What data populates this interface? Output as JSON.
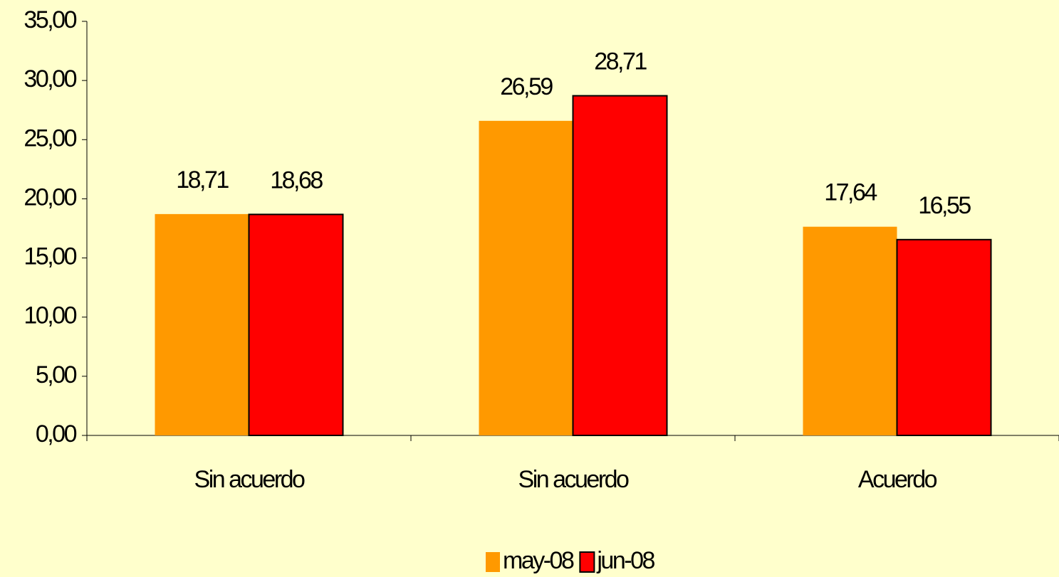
{
  "chart_data": {
    "type": "bar",
    "categories": [
      "Sin acuerdo",
      "Sin acuerdo",
      "Acuerdo"
    ],
    "series": [
      {
        "name": "may-08",
        "color": "#ff9900",
        "values": [
          18.71,
          26.59,
          17.64
        ],
        "value_labels": [
          "18,71",
          "26,59",
          "17,64"
        ]
      },
      {
        "name": "jun-08",
        "color": "#ff0000",
        "edgecolor": "#000000",
        "values": [
          18.68,
          28.71,
          16.55
        ],
        "value_labels": [
          "18,68",
          "28,71",
          "16,55"
        ]
      }
    ],
    "ylim": [
      0,
      35
    ],
    "yticks": [
      {
        "value": 0,
        "label": "0,00"
      },
      {
        "value": 5,
        "label": "5,00"
      },
      {
        "value": 10,
        "label": "10,00"
      },
      {
        "value": 15,
        "label": "15,00"
      },
      {
        "value": 20,
        "label": "20,00"
      },
      {
        "value": 25,
        "label": "25,00"
      },
      {
        "value": 30,
        "label": "30,00"
      },
      {
        "value": 35,
        "label": "35,00"
      }
    ],
    "legend": "bottom"
  }
}
